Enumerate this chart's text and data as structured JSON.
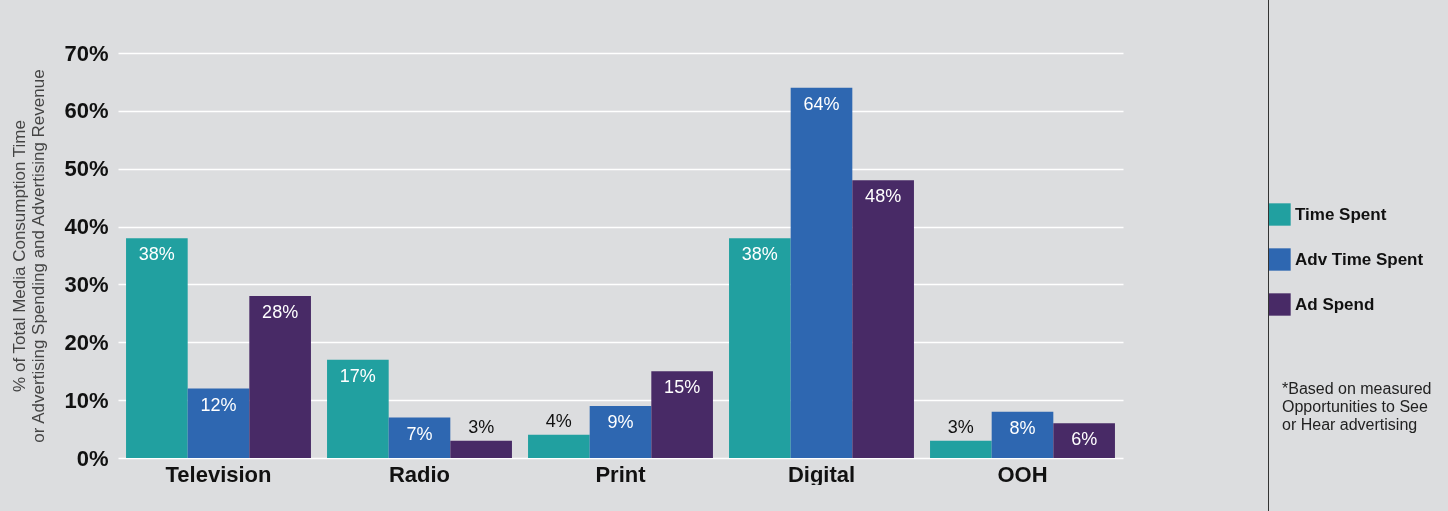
{
  "chart_data": {
    "type": "bar",
    "ylabel": "% of Total Media Consumption Time\nor Advertising Spending and Advertising Revenue",
    "categories": [
      "Television",
      "Radio",
      "Print",
      "Digital",
      "OOH"
    ],
    "series": [
      {
        "name": "Time Spent",
        "color": "#21a0a0",
        "values": [
          38,
          17,
          4,
          38,
          3
        ],
        "value_labels": [
          "38%",
          "17%",
          "4%",
          "38%",
          "3%"
        ]
      },
      {
        "name": "Adv Time Spent",
        "color": "#2e67b1",
        "values": [
          12,
          7,
          9,
          64,
          8
        ],
        "value_labels": [
          "12%",
          "7%",
          "9%",
          "64%",
          "8%"
        ]
      },
      {
        "name": "Ad Spend",
        "color": "#482a66",
        "values": [
          28,
          3,
          15,
          48,
          6
        ],
        "value_labels": [
          "28%",
          "3%",
          "15%",
          "48%",
          "6%"
        ]
      }
    ],
    "ylim": [
      0,
      70
    ],
    "yticks": [
      {
        "value": 0,
        "label": "0%"
      },
      {
        "value": 10,
        "label": "10%"
      },
      {
        "value": 20,
        "label": "20%"
      },
      {
        "value": 30,
        "label": "30%"
      },
      {
        "value": 40,
        "label": "40%"
      },
      {
        "value": 50,
        "label": "50%"
      },
      {
        "value": 60,
        "label": "60%"
      },
      {
        "value": 70,
        "label": "70%"
      }
    ],
    "grid": "y",
    "legend": "right",
    "annotations": [
      "*Based on measured Opportunities to See or Hear advertising"
    ]
  }
}
